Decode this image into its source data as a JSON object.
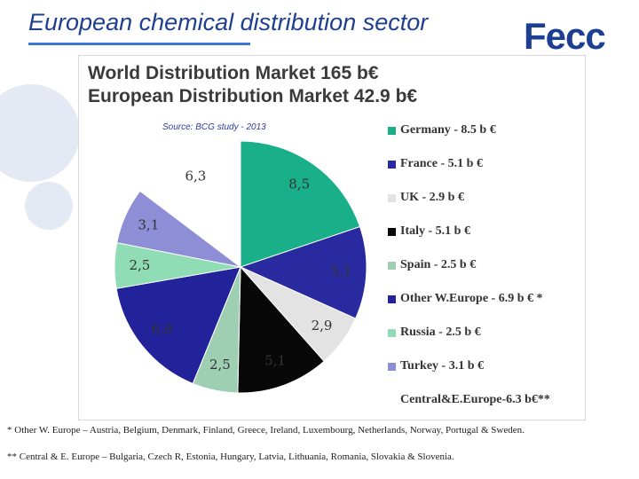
{
  "header": {
    "title": "European chemical distribution sector",
    "logo_text": "Fecc"
  },
  "chart_data": {
    "type": "pie",
    "title_line1": "World Distribution Market 165 b€",
    "title_line2": "European Distribution Market 42.9 b€",
    "source": "Source: BCG study - 2013",
    "slices": [
      {
        "label": "8,5",
        "value": 8.5,
        "legend": "Germany - 8.5 b €",
        "color": "#19b089"
      },
      {
        "label": "5,1",
        "value": 5.1,
        "legend": "France - 5.1 b €",
        "color": "#2a2aa0"
      },
      {
        "label": "2,9",
        "value": 2.9,
        "legend": "UK - 2.9 b €",
        "color": "#e3e3e3"
      },
      {
        "label": "5,1",
        "value": 5.1,
        "legend": "Italy - 5.1 b €",
        "color": "#080808"
      },
      {
        "label": "2,5",
        "value": 2.5,
        "legend": "Spain - 2.5 b €",
        "color": "#9fcfb2"
      },
      {
        "label": "6,9",
        "value": 6.9,
        "legend": "Other W.Europe - 6.9 b € *",
        "color": "#22229a"
      },
      {
        "label": "2,5",
        "value": 2.5,
        "legend": "Russia - 2.5 b €",
        "color": "#8fdcb5"
      },
      {
        "label": "3,1",
        "value": 3.1,
        "legend": "Turkey - 3.1 b €",
        "color": "#8e8ed6"
      },
      {
        "label": "6,3",
        "value": 6.3,
        "legend": "Central&E.Europe-6.3  b€**",
        "color": "#ffffff"
      }
    ]
  },
  "footnotes": {
    "note1": "* Other W. Europe – Austria, Belgium, Denmark, Finland, Greece, Ireland, Luxembourg, Netherlands, Norway, Portugal & Sweden.",
    "note2": "** Central & E. Europe – Bulgaria, Czech R, Estonia, Hungary, Latvia, Lithuania, Romania, Slovakia & Slovenia."
  }
}
